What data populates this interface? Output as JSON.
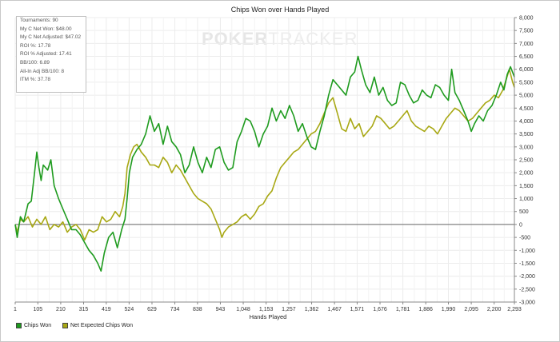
{
  "chart_data": {
    "type": "line",
    "title": "Chips Won over Hands Played",
    "xlabel": "Hands Played",
    "ylabel": "",
    "xlim": [
      1,
      2293
    ],
    "ylim": [
      -3000,
      8000
    ],
    "x_ticks": [
      "1",
      "105",
      "210",
      "315",
      "419",
      "524",
      "629",
      "734",
      "838",
      "943",
      "1,048",
      "1,153",
      "1,257",
      "1,362",
      "1,467",
      "1,571",
      "1,676",
      "1,781",
      "1,886",
      "1,990",
      "2,095",
      "2,200",
      "2,293"
    ],
    "y_ticks": [
      "-3,000",
      "-2,500",
      "-2,000",
      "-1,500",
      "-1,000",
      "-500",
      "0",
      "500",
      "1,000",
      "1,500",
      "2,000",
      "2,500",
      "3,000",
      "3,500",
      "4,000",
      "4,500",
      "5,000",
      "5,500",
      "6,000",
      "6,500",
      "7,000",
      "7,500",
      "8,000"
    ],
    "series": [
      {
        "name": "Chips Won",
        "color": "#1e9b1e",
        "points": [
          [
            1,
            0
          ],
          [
            10,
            -500
          ],
          [
            25,
            300
          ],
          [
            40,
            100
          ],
          [
            60,
            800
          ],
          [
            75,
            900
          ],
          [
            90,
            2000
          ],
          [
            100,
            2800
          ],
          [
            110,
            2200
          ],
          [
            120,
            1700
          ],
          [
            130,
            2300
          ],
          [
            150,
            2100
          ],
          [
            165,
            2500
          ],
          [
            180,
            1500
          ],
          [
            200,
            1000
          ],
          [
            220,
            600
          ],
          [
            240,
            200
          ],
          [
            260,
            -200
          ],
          [
            280,
            -200
          ],
          [
            300,
            -400
          ],
          [
            320,
            -700
          ],
          [
            340,
            -1000
          ],
          [
            360,
            -1200
          ],
          [
            380,
            -1500
          ],
          [
            395,
            -1800
          ],
          [
            410,
            -1100
          ],
          [
            430,
            -500
          ],
          [
            450,
            -300
          ],
          [
            470,
            -900
          ],
          [
            490,
            -200
          ],
          [
            505,
            200
          ],
          [
            515,
            1000
          ],
          [
            525,
            2000
          ],
          [
            540,
            2600
          ],
          [
            560,
            2900
          ],
          [
            580,
            3100
          ],
          [
            600,
            3500
          ],
          [
            620,
            4200
          ],
          [
            640,
            3600
          ],
          [
            660,
            3900
          ],
          [
            680,
            3100
          ],
          [
            700,
            3800
          ],
          [
            720,
            3200
          ],
          [
            740,
            3000
          ],
          [
            760,
            2700
          ],
          [
            780,
            2000
          ],
          [
            800,
            2300
          ],
          [
            820,
            3000
          ],
          [
            840,
            2400
          ],
          [
            860,
            2000
          ],
          [
            880,
            2600
          ],
          [
            900,
            2200
          ],
          [
            920,
            2900
          ],
          [
            940,
            3000
          ],
          [
            960,
            2400
          ],
          [
            980,
            2100
          ],
          [
            1000,
            2200
          ],
          [
            1020,
            3200
          ],
          [
            1040,
            3600
          ],
          [
            1060,
            4100
          ],
          [
            1080,
            4000
          ],
          [
            1100,
            3600
          ],
          [
            1120,
            3000
          ],
          [
            1140,
            3500
          ],
          [
            1160,
            3800
          ],
          [
            1180,
            4500
          ],
          [
            1200,
            4000
          ],
          [
            1220,
            4400
          ],
          [
            1240,
            4100
          ],
          [
            1260,
            4600
          ],
          [
            1280,
            4200
          ],
          [
            1300,
            3600
          ],
          [
            1320,
            3900
          ],
          [
            1340,
            3400
          ],
          [
            1360,
            3000
          ],
          [
            1380,
            2900
          ],
          [
            1400,
            3600
          ],
          [
            1420,
            4200
          ],
          [
            1440,
            5000
          ],
          [
            1460,
            5600
          ],
          [
            1480,
            5400
          ],
          [
            1500,
            5200
          ],
          [
            1520,
            5000
          ],
          [
            1540,
            5700
          ],
          [
            1560,
            5900
          ],
          [
            1575,
            6500
          ],
          [
            1590,
            6000
          ],
          [
            1610,
            5400
          ],
          [
            1630,
            5100
          ],
          [
            1650,
            5700
          ],
          [
            1670,
            5000
          ],
          [
            1690,
            5300
          ],
          [
            1710,
            4800
          ],
          [
            1730,
            4600
          ],
          [
            1750,
            4700
          ],
          [
            1770,
            5500
          ],
          [
            1790,
            5400
          ],
          [
            1810,
            5000
          ],
          [
            1830,
            4700
          ],
          [
            1850,
            4800
          ],
          [
            1870,
            5200
          ],
          [
            1890,
            5000
          ],
          [
            1910,
            4900
          ],
          [
            1930,
            5400
          ],
          [
            1950,
            5300
          ],
          [
            1970,
            5000
          ],
          [
            1990,
            4800
          ],
          [
            2005,
            6000
          ],
          [
            2020,
            5100
          ],
          [
            2040,
            4800
          ],
          [
            2060,
            4400
          ],
          [
            2080,
            4000
          ],
          [
            2095,
            3600
          ],
          [
            2110,
            3900
          ],
          [
            2130,
            4200
          ],
          [
            2150,
            4000
          ],
          [
            2170,
            4400
          ],
          [
            2190,
            4600
          ],
          [
            2210,
            5000
          ],
          [
            2230,
            5500
          ],
          [
            2245,
            5200
          ],
          [
            2260,
            5800
          ],
          [
            2275,
            6100
          ],
          [
            2293,
            5700
          ]
        ]
      },
      {
        "name": "Net Expected Chips Won",
        "color": "#a8a814",
        "points": [
          [
            1,
            0
          ],
          [
            10,
            -300
          ],
          [
            25,
            200
          ],
          [
            40,
            100
          ],
          [
            60,
            300
          ],
          [
            80,
            -100
          ],
          [
            100,
            200
          ],
          [
            120,
            0
          ],
          [
            140,
            300
          ],
          [
            160,
            -200
          ],
          [
            180,
            0
          ],
          [
            200,
            -100
          ],
          [
            220,
            100
          ],
          [
            240,
            -300
          ],
          [
            260,
            -100
          ],
          [
            280,
            0
          ],
          [
            300,
            -200
          ],
          [
            320,
            -600
          ],
          [
            340,
            -200
          ],
          [
            360,
            -300
          ],
          [
            380,
            -200
          ],
          [
            400,
            300
          ],
          [
            420,
            100
          ],
          [
            440,
            200
          ],
          [
            460,
            500
          ],
          [
            480,
            300
          ],
          [
            495,
            700
          ],
          [
            505,
            1200
          ],
          [
            515,
            2200
          ],
          [
            530,
            2700
          ],
          [
            545,
            3000
          ],
          [
            560,
            3100
          ],
          [
            580,
            2800
          ],
          [
            600,
            2600
          ],
          [
            620,
            2300
          ],
          [
            640,
            2300
          ],
          [
            660,
            2200
          ],
          [
            680,
            2600
          ],
          [
            700,
            2400
          ],
          [
            720,
            2000
          ],
          [
            740,
            2300
          ],
          [
            760,
            2100
          ],
          [
            780,
            1800
          ],
          [
            800,
            1500
          ],
          [
            820,
            1200
          ],
          [
            840,
            1000
          ],
          [
            860,
            900
          ],
          [
            880,
            800
          ],
          [
            900,
            600
          ],
          [
            920,
            200
          ],
          [
            940,
            -200
          ],
          [
            950,
            -500
          ],
          [
            960,
            -300
          ],
          [
            980,
            -100
          ],
          [
            1000,
            0
          ],
          [
            1020,
            100
          ],
          [
            1040,
            300
          ],
          [
            1060,
            400
          ],
          [
            1080,
            200
          ],
          [
            1100,
            400
          ],
          [
            1120,
            700
          ],
          [
            1140,
            800
          ],
          [
            1160,
            1100
          ],
          [
            1180,
            1300
          ],
          [
            1200,
            1800
          ],
          [
            1220,
            2200
          ],
          [
            1240,
            2400
          ],
          [
            1260,
            2600
          ],
          [
            1280,
            2800
          ],
          [
            1300,
            2900
          ],
          [
            1320,
            3100
          ],
          [
            1340,
            3300
          ],
          [
            1360,
            3500
          ],
          [
            1380,
            3600
          ],
          [
            1400,
            3900
          ],
          [
            1420,
            4300
          ],
          [
            1440,
            4700
          ],
          [
            1460,
            4900
          ],
          [
            1480,
            4300
          ],
          [
            1500,
            3700
          ],
          [
            1520,
            3600
          ],
          [
            1540,
            4100
          ],
          [
            1560,
            3700
          ],
          [
            1580,
            3900
          ],
          [
            1600,
            3400
          ],
          [
            1620,
            3600
          ],
          [
            1640,
            3800
          ],
          [
            1660,
            4200
          ],
          [
            1680,
            4100
          ],
          [
            1700,
            3900
          ],
          [
            1720,
            3700
          ],
          [
            1740,
            3800
          ],
          [
            1760,
            4000
          ],
          [
            1780,
            4200
          ],
          [
            1800,
            4400
          ],
          [
            1820,
            4000
          ],
          [
            1840,
            3800
          ],
          [
            1860,
            3700
          ],
          [
            1880,
            3600
          ],
          [
            1900,
            3800
          ],
          [
            1920,
            3700
          ],
          [
            1940,
            3500
          ],
          [
            1960,
            3800
          ],
          [
            1980,
            4100
          ],
          [
            2000,
            4300
          ],
          [
            2020,
            4500
          ],
          [
            2040,
            4400
          ],
          [
            2060,
            4200
          ],
          [
            2080,
            4000
          ],
          [
            2100,
            4100
          ],
          [
            2120,
            4300
          ],
          [
            2140,
            4500
          ],
          [
            2160,
            4700
          ],
          [
            2180,
            4800
          ],
          [
            2200,
            5000
          ],
          [
            2220,
            4900
          ],
          [
            2240,
            5200
          ],
          [
            2255,
            5600
          ],
          [
            2270,
            6000
          ],
          [
            2285,
            5500
          ],
          [
            2293,
            5300
          ]
        ]
      }
    ],
    "legend_position": "bottom-left",
    "grid": true
  },
  "stats": {
    "tournaments": "Tournaments: 90",
    "net_won": "My C Net Won: $48.00",
    "net_won_adj": "My C Net Adjusted: $47.02",
    "roi": "ROI %: 17.78",
    "roi_adj": "ROI % Adjusted: 17.41",
    "bb100": "BB/100: 6.89",
    "allin_bb100": "All-In Adj BB/100: 8",
    "itm": "ITM %: 37.78"
  },
  "watermark": {
    "part1": "POKER",
    "part2": "TRACKER"
  }
}
